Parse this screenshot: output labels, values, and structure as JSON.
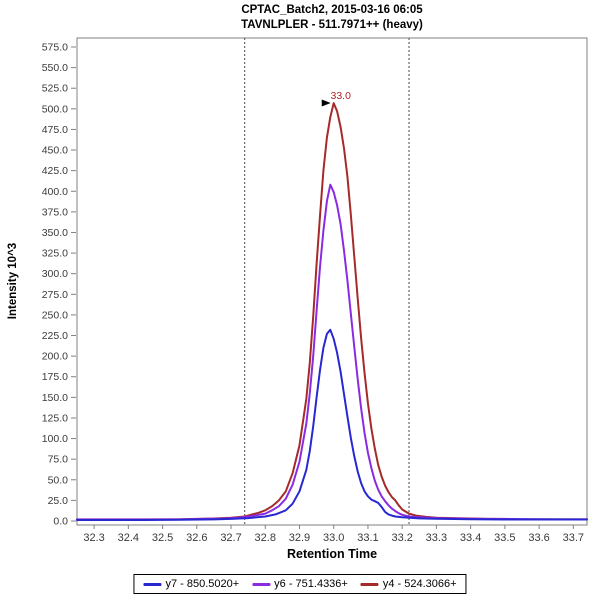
{
  "chart_data": {
    "type": "line",
    "title": "CPTAC_Batch2, 2015-03-16 06:05",
    "subtitle": "TAVNLPLER - 511.7971++ (heavy)",
    "xlabel": "Retention Time",
    "ylabel": "Intensity 10^3",
    "xlim": [
      32.25,
      33.74
    ],
    "ylim": [
      0,
      586
    ],
    "x_ticks": [
      32.3,
      32.4,
      32.5,
      32.6,
      32.7,
      32.8,
      32.9,
      33.0,
      33.1,
      33.2,
      33.3,
      33.4,
      33.5,
      33.6,
      33.7
    ],
    "y_ticks": [
      0,
      25,
      50,
      75,
      100,
      125,
      150,
      175,
      200,
      225,
      250,
      275,
      300,
      325,
      350,
      375,
      400,
      425,
      450,
      475,
      500,
      525,
      550,
      575
    ],
    "grid": false,
    "legend_position": "bottom",
    "integration_boundaries": [
      32.74,
      33.22
    ],
    "boundary_line_style": "dashed",
    "peak_annotation": {
      "text": "33.0",
      "rt": 33.0,
      "intensity_10e3": 507,
      "color": "#b42525",
      "marker": "right-arrow"
    },
    "series": [
      {
        "name": "y7 - 850.5020+",
        "color": "#2828d2",
        "points": [
          [
            32.25,
            1.2
          ],
          [
            32.35,
            1.2
          ],
          [
            32.45,
            1.2
          ],
          [
            32.55,
            1.4
          ],
          [
            32.65,
            2
          ],
          [
            32.7,
            2.5
          ],
          [
            32.75,
            3.5
          ],
          [
            32.8,
            5.5
          ],
          [
            32.83,
            8
          ],
          [
            32.86,
            13
          ],
          [
            32.88,
            21
          ],
          [
            32.9,
            36
          ],
          [
            32.92,
            62
          ],
          [
            32.93,
            85
          ],
          [
            32.94,
            115
          ],
          [
            32.95,
            150
          ],
          [
            32.96,
            183
          ],
          [
            32.97,
            210
          ],
          [
            32.98,
            227
          ],
          [
            32.99,
            232
          ],
          [
            33.0,
            221
          ],
          [
            33.01,
            204
          ],
          [
            33.02,
            181
          ],
          [
            33.03,
            154
          ],
          [
            33.04,
            127
          ],
          [
            33.05,
            101
          ],
          [
            33.06,
            79
          ],
          [
            33.07,
            60
          ],
          [
            33.08,
            46
          ],
          [
            33.09,
            36
          ],
          [
            33.1,
            30
          ],
          [
            33.11,
            26
          ],
          [
            33.12,
            24
          ],
          [
            33.13,
            22
          ],
          [
            33.14,
            17
          ],
          [
            33.15,
            11
          ],
          [
            33.16,
            8
          ],
          [
            33.17,
            6.5
          ],
          [
            33.18,
            5.5
          ],
          [
            33.2,
            4.5
          ],
          [
            33.25,
            3.2
          ],
          [
            33.3,
            2.8
          ],
          [
            33.4,
            2.2
          ],
          [
            33.5,
            1.8
          ],
          [
            33.6,
            1.8
          ],
          [
            33.7,
            1.8
          ],
          [
            33.74,
            1.8
          ]
        ]
      },
      {
        "name": "y6 - 751.4336+",
        "color": "#8a2be2",
        "points": [
          [
            32.25,
            1.8
          ],
          [
            32.35,
            1.8
          ],
          [
            32.45,
            1.8
          ],
          [
            32.55,
            2
          ],
          [
            32.62,
            2.5
          ],
          [
            32.68,
            3
          ],
          [
            32.72,
            4
          ],
          [
            32.76,
            6
          ],
          [
            32.8,
            9
          ],
          [
            32.82,
            13
          ],
          [
            32.84,
            18
          ],
          [
            32.86,
            27
          ],
          [
            32.88,
            44
          ],
          [
            32.9,
            72
          ],
          [
            32.92,
            118
          ],
          [
            32.93,
            155
          ],
          [
            32.94,
            200
          ],
          [
            32.95,
            255
          ],
          [
            32.96,
            308
          ],
          [
            32.97,
            352
          ],
          [
            32.98,
            388
          ],
          [
            32.99,
            408
          ],
          [
            33.0,
            399
          ],
          [
            33.01,
            383
          ],
          [
            33.02,
            360
          ],
          [
            33.03,
            328
          ],
          [
            33.04,
            292
          ],
          [
            33.05,
            252
          ],
          [
            33.06,
            212
          ],
          [
            33.07,
            172
          ],
          [
            33.08,
            137
          ],
          [
            33.09,
            107
          ],
          [
            33.1,
            83
          ],
          [
            33.11,
            64
          ],
          [
            33.12,
            49
          ],
          [
            33.13,
            38
          ],
          [
            33.14,
            30
          ],
          [
            33.15,
            24
          ],
          [
            33.16,
            19
          ],
          [
            33.17,
            15
          ],
          [
            33.18,
            12
          ],
          [
            33.19,
            9.5
          ],
          [
            33.2,
            7.5
          ],
          [
            33.22,
            5.5
          ],
          [
            33.25,
            4.5
          ],
          [
            33.3,
            3.5
          ],
          [
            33.35,
            3
          ],
          [
            33.4,
            2.8
          ],
          [
            33.5,
            2.4
          ],
          [
            33.6,
            2.2
          ],
          [
            33.7,
            2
          ],
          [
            33.74,
            2
          ]
        ]
      },
      {
        "name": "y4 - 524.3066+",
        "color": "#a52a2a",
        "points": [
          [
            32.25,
            2
          ],
          [
            32.35,
            2
          ],
          [
            32.45,
            2
          ],
          [
            32.55,
            2
          ],
          [
            32.6,
            2.5
          ],
          [
            32.65,
            3
          ],
          [
            32.7,
            4
          ],
          [
            32.74,
            5.5
          ],
          [
            32.78,
            10
          ],
          [
            32.8,
            13
          ],
          [
            32.82,
            18
          ],
          [
            32.84,
            25
          ],
          [
            32.86,
            36
          ],
          [
            32.88,
            58
          ],
          [
            32.9,
            92
          ],
          [
            32.92,
            148
          ],
          [
            32.93,
            192
          ],
          [
            32.94,
            248
          ],
          [
            32.95,
            312
          ],
          [
            32.96,
            370
          ],
          [
            32.97,
            425
          ],
          [
            32.98,
            465
          ],
          [
            32.99,
            490
          ],
          [
            33.0,
            507
          ],
          [
            33.01,
            497
          ],
          [
            33.02,
            478
          ],
          [
            33.03,
            452
          ],
          [
            33.04,
            418
          ],
          [
            33.05,
            372
          ],
          [
            33.06,
            322
          ],
          [
            33.07,
            270
          ],
          [
            33.08,
            222
          ],
          [
            33.09,
            180
          ],
          [
            33.1,
            143
          ],
          [
            33.11,
            112
          ],
          [
            33.12,
            88
          ],
          [
            33.13,
            68
          ],
          [
            33.14,
            54
          ],
          [
            33.15,
            43
          ],
          [
            33.16,
            35
          ],
          [
            33.17,
            29
          ],
          [
            33.18,
            25
          ],
          [
            33.19,
            19
          ],
          [
            33.2,
            14
          ],
          [
            33.22,
            9
          ],
          [
            33.24,
            6.5
          ],
          [
            33.27,
            5
          ],
          [
            33.3,
            4
          ],
          [
            33.35,
            3.5
          ],
          [
            33.4,
            3
          ],
          [
            33.45,
            2.5
          ],
          [
            33.5,
            2.5
          ],
          [
            33.55,
            2
          ],
          [
            33.6,
            2
          ],
          [
            33.65,
            2
          ],
          [
            33.7,
            2
          ],
          [
            33.74,
            2
          ]
        ]
      }
    ],
    "colors": {
      "axis": "#808080",
      "tick_label": "#3a3a3a",
      "boundary": "#4a4a4a",
      "title": "#000000"
    }
  }
}
